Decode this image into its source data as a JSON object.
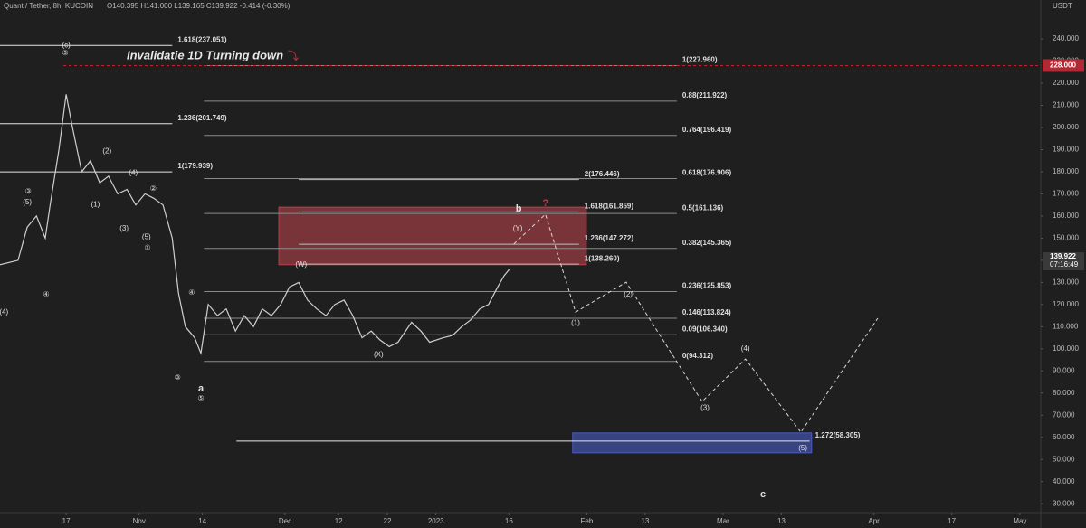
{
  "header": {
    "symbol": "Quant / Tether, 8h, KUCOIN",
    "ohlc": "O140.395 H141.000 L139.165 C139.922 -0.414 (-0.30%)"
  },
  "chart_data": {
    "type": "line",
    "title": "Invalidatie 1D Turning down",
    "title_marker": "⤵",
    "y_unit": "USDT",
    "x": [
      -13.6,
      -9.9,
      -8.0,
      -6.1,
      -4.3,
      -3.3,
      -1.5,
      0,
      1.3,
      3.2,
      5.0,
      6.9,
      8.7,
      10.6,
      12.5,
      14.3,
      16.2,
      18.0,
      19.9,
      21.8,
      23.1,
      24.5,
      26.4,
      27.7,
      29.2,
      31.1,
      32.9,
      34.8,
      36.6,
      38.5,
      40.3,
      42.2,
      44.1,
      45.9,
      47.8,
      49.6,
      51.5,
      53.4,
      55.2,
      57.1,
      58.9,
      60.8,
      62.7,
      64.5,
      66.4,
      68.2,
      71.0,
      72.9,
      74.7,
      77.5,
      79.4,
      81.3,
      83.1,
      85.0,
      86.8,
      88.7,
      90.0,
      91.1
    ],
    "values": [
      138,
      140,
      155,
      160,
      150,
      165,
      190,
      215,
      200,
      180,
      185,
      175,
      178,
      170,
      172,
      165,
      170,
      168,
      165,
      150,
      125,
      110,
      105,
      98,
      120,
      115,
      118,
      108,
      115,
      110,
      118,
      115,
      120,
      128,
      130,
      122,
      118,
      115,
      120,
      122,
      115,
      105,
      108,
      104,
      101,
      103,
      112,
      108,
      103,
      105,
      106,
      110,
      113,
      118,
      120,
      128,
      133,
      136
    ],
    "color": "#cfcfcf",
    "projection": {
      "x": [
        92.0,
        98.5,
        104.7,
        115.1,
        130.7,
        139.6,
        151.0,
        166.8
      ],
      "values": [
        147.3,
        160.8,
        116.6,
        130.1,
        76.2,
        95.4,
        62.3,
        113.8
      ],
      "color": "#d8d8d8"
    },
    "fib_sets": [
      {
        "from": -13.6,
        "to": 21.8,
        "color": "#e6e6e6",
        "levels": [
          {
            "label": "1.618(237.051)",
            "value": 237.051
          },
          {
            "label": "1.236(201.749)",
            "value": 201.749
          },
          {
            "label": "1(179.939)",
            "value": 179.939
          }
        ]
      },
      {
        "from": 28.3,
        "to": 125.5,
        "color": "#8a8a8a",
        "levels": [
          {
            "label": "1(227.960)",
            "value": 227.96
          },
          {
            "label": "0.88(211.922)",
            "value": 211.922
          },
          {
            "label": "0.764(196.419)",
            "value": 196.419
          },
          {
            "label": "0.618(176.906)",
            "value": 176.906
          },
          {
            "label": "0.5(161.136)",
            "value": 161.136
          },
          {
            "label": "0.382(145.365)",
            "value": 145.365
          },
          {
            "label": "0.236(125.853)",
            "value": 125.853
          },
          {
            "label": "0.146(113.824)",
            "value": 113.824
          },
          {
            "label": "0.09(106.340)",
            "value": 106.34
          },
          {
            "label": "0(94.312)",
            "value": 94.312
          }
        ]
      },
      {
        "from": 47.8,
        "to": 105.4,
        "color": "#bdbdbd",
        "levels": [
          {
            "label": "2(176.446)",
            "value": 176.446
          },
          {
            "label": "1.618(161.859)",
            "value": 161.859
          },
          {
            "label": "1.236(147.272)",
            "value": 147.272
          },
          {
            "label": "1(138.260)",
            "value": 138.26
          }
        ]
      },
      {
        "from": 35.0,
        "to": 152.8,
        "color": "#e6e6e6",
        "levels": [
          {
            "label": "1.272(58.305)",
            "value": 58.305
          }
        ]
      }
    ],
    "zones": [
      {
        "x": [
          43.7,
          106.9
        ],
        "y": [
          138,
          164
        ],
        "color": "#b5434d"
      },
      {
        "x": [
          104.1,
          153.2
        ],
        "y": [
          53,
          62
        ],
        "color": "#4a5cc4"
      }
    ],
    "invalidation": {
      "value": 228,
      "label": "228.000",
      "color": "#b22833"
    },
    "last_price": {
      "value": 139.922,
      "label": "139.922",
      "time": "07:16:49"
    },
    "annotations": [
      {
        "text": "(c)",
        "x": 0,
        "y": 237.1
      },
      {
        "text": "⑤",
        "x": -0.2,
        "y": 233.5
      },
      {
        "text": "b",
        "x": 93.0,
        "y": 163.2
      },
      {
        "text": "?",
        "x": 98.5,
        "y": 165.7,
        "color": "#c0394a"
      },
      {
        "text": "a",
        "x": 27.7,
        "y": 82.0
      },
      {
        "text": "c",
        "x": 143.2,
        "y": 34.1
      },
      {
        "text": "(W)",
        "x": 48.3,
        "y": 137.9
      },
      {
        "text": "(X)",
        "x": 64.2,
        "y": 97.4
      },
      {
        "text": "(Y)",
        "x": 92.8,
        "y": 154.2
      },
      {
        "text": "(1)",
        "x": 104.7,
        "y": 111.7
      },
      {
        "text": "(2)",
        "x": 115.5,
        "y": 124.4
      },
      {
        "text": "(3)",
        "x": 131.3,
        "y": 73.3
      },
      {
        "text": "(4)",
        "x": 139.6,
        "y": 99.9
      },
      {
        "text": "(5)",
        "x": 151.4,
        "y": 55.0
      },
      {
        "text": "(5)",
        "x": -8.0,
        "y": 166.1
      },
      {
        "text": "(4)",
        "x": -12.8,
        "y": 116.6
      },
      {
        "text": "(2)",
        "x": 8.4,
        "y": 189.3
      },
      {
        "text": "(4)",
        "x": 13.8,
        "y": 179.5
      },
      {
        "text": "(1)",
        "x": 6.0,
        "y": 165.2
      },
      {
        "text": "(3)",
        "x": 11.9,
        "y": 154.2
      },
      {
        "text": "(5)",
        "x": 16.5,
        "y": 150.5
      },
      {
        "text": "③",
        "x": -7.8,
        "y": 171.0
      },
      {
        "text": "④",
        "x": -4.1,
        "y": 124.4
      },
      {
        "text": "②",
        "x": 17.9,
        "y": 172.2
      },
      {
        "text": "①",
        "x": 16.7,
        "y": 145.6
      },
      {
        "text": "④",
        "x": 25.8,
        "y": 125.2
      },
      {
        "text": "③",
        "x": 22.9,
        "y": 86.8
      },
      {
        "text": "⑤",
        "x": 27.7,
        "y": 77.4
      }
    ],
    "xlim": [
      -13.6,
      200.3
    ],
    "ylim": [
      26.8,
      257.6
    ],
    "xticks": [
      {
        "value": 0,
        "label": "17"
      },
      {
        "value": 15,
        "label": "Nov"
      },
      {
        "value": 28,
        "label": "14"
      },
      {
        "value": 45,
        "label": "Dec"
      },
      {
        "value": 56,
        "label": "12"
      },
      {
        "value": 66,
        "label": "22"
      },
      {
        "value": 76,
        "label": "2023"
      },
      {
        "value": 91,
        "label": "16"
      },
      {
        "value": 107,
        "label": "Feb"
      },
      {
        "value": 119,
        "label": "13"
      },
      {
        "value": 135,
        "label": "Mar"
      },
      {
        "value": 147,
        "label": "13"
      },
      {
        "value": 166,
        "label": "Apr"
      },
      {
        "value": 182,
        "label": "17"
      },
      {
        "value": 196,
        "label": "May"
      }
    ],
    "yticks": [
      {
        "value": 30,
        "label": "30.000"
      },
      {
        "value": 40,
        "label": "40.000"
      },
      {
        "value": 50,
        "label": "50.000"
      },
      {
        "value": 60,
        "label": "60.000"
      },
      {
        "value": 70,
        "label": "70.000"
      },
      {
        "value": 80,
        "label": "80.000"
      },
      {
        "value": 90,
        "label": "90.000"
      },
      {
        "value": 100,
        "label": "100.000"
      },
      {
        "value": 110,
        "label": "110.000"
      },
      {
        "value": 120,
        "label": "120.000"
      },
      {
        "value": 130,
        "label": "130.000"
      },
      {
        "value": 140,
        "label": "140.000"
      },
      {
        "value": 150,
        "label": "150.000"
      },
      {
        "value": 160,
        "label": "160.000"
      },
      {
        "value": 170,
        "label": "170.000"
      },
      {
        "value": 180,
        "label": "180.000"
      },
      {
        "value": 190,
        "label": "190.000"
      },
      {
        "value": 200,
        "label": "200.000"
      },
      {
        "value": 210,
        "label": "210.000"
      },
      {
        "value": 220,
        "label": "220.000"
      },
      {
        "value": 230,
        "label": "230.000"
      },
      {
        "value": 240,
        "label": "240.000"
      }
    ]
  }
}
